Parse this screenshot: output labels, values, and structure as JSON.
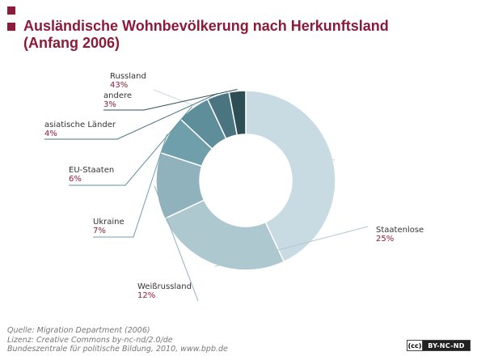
{
  "title": {
    "line1": "Ausländische Wohnbevölkerung nach Herkunftsland",
    "line2": "(Anfang 2006)"
  },
  "colors": {
    "accent": "#8c1b3a"
  },
  "chart_data": {
    "type": "pie",
    "variant": "donut",
    "start": "top",
    "direction": "clockwise",
    "legend": "none",
    "categories": [
      "Russland",
      "Staatenlose",
      "Weißrussland",
      "Ukraine",
      "EU-Staaten",
      "asiatische Länder",
      "andere"
    ],
    "values": [
      43,
      25,
      12,
      7,
      6,
      4,
      3
    ],
    "labels": [
      "43%",
      "25%",
      "12%",
      "7%",
      "6%",
      "4%",
      "3%"
    ],
    "colors": [
      "#c8dbe3",
      "#aec8d0",
      "#8fb2bd",
      "#6f9fab",
      "#5e8e9a",
      "#4a7480",
      "#2e4e55"
    ]
  },
  "source": {
    "line1": "Quelle: Migration Department (2006)",
    "line2": "Lizenz: Creative Commons by-nc-nd/2.0/de",
    "line3": "Bundeszentrale für politische Bildung, 2010, www.bpb.de"
  },
  "license_badge": {
    "cc": "(cc)",
    "text": "BY-NC-ND"
  }
}
